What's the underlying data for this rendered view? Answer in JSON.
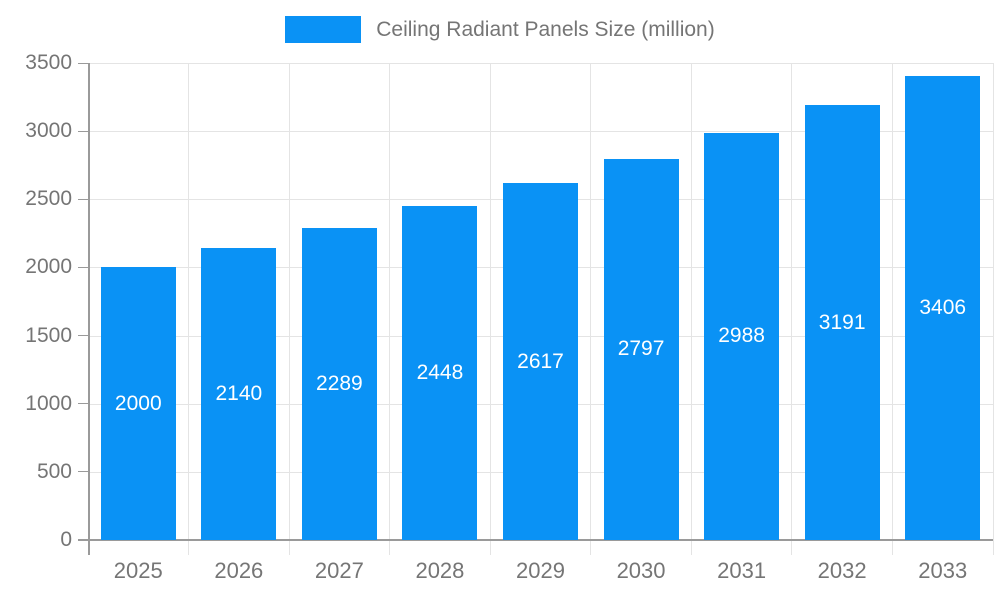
{
  "chart_data": {
    "type": "bar",
    "title": "",
    "legend": "Ceiling Radiant Panels Size (million)",
    "categories": [
      "2025",
      "2026",
      "2027",
      "2028",
      "2029",
      "2030",
      "2031",
      "2032",
      "2033"
    ],
    "values": [
      2000,
      2140,
      2289,
      2448,
      2617,
      2797,
      2988,
      3191,
      3406
    ],
    "ylim": [
      0,
      3500
    ],
    "yticks": [
      0,
      500,
      1000,
      1500,
      2000,
      2500,
      3000,
      3500
    ],
    "grid": "both",
    "legend_position": "top",
    "xlabel": "",
    "ylabel": "",
    "colors": {
      "bar": "#0a92f5",
      "bar_label": "#ffffff",
      "axis_text": "#757575",
      "gridline": "#e4e4e4",
      "axis_line": "#9a9a9a"
    }
  }
}
